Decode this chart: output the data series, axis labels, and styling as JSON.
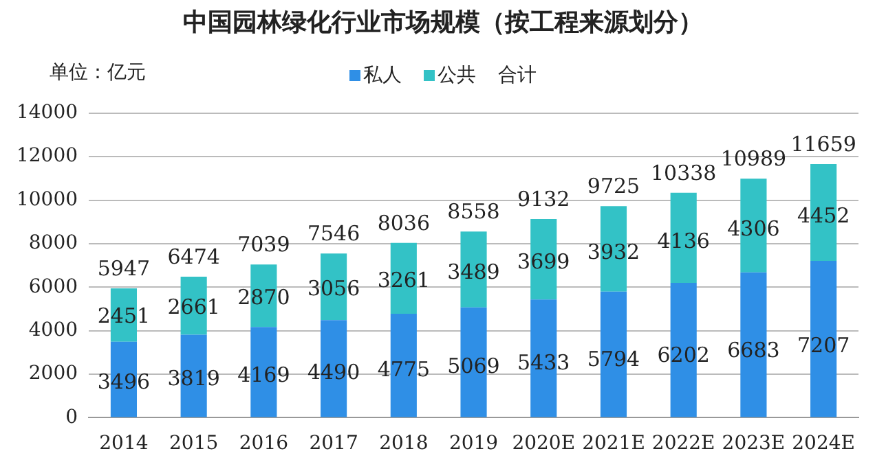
{
  "chart_data": {
    "type": "bar",
    "title": "中国园林绿化行业市场规模（按工程来源划分）",
    "ylabel": "单位：亿元",
    "categories": [
      "2014",
      "2015",
      "2016",
      "2017",
      "2018",
      "2019",
      "2020E",
      "2021E",
      "2022E",
      "2023E",
      "2024E"
    ],
    "series": [
      {
        "name": "私人",
        "color": "#2f8fe6",
        "values": [
          3496,
          3819,
          4169,
          4490,
          4775,
          5069,
          5433,
          5794,
          6202,
          6683,
          7207
        ]
      },
      {
        "name": "公共",
        "color": "#33c2c6",
        "values": [
          2451,
          2661,
          2870,
          3056,
          3261,
          3489,
          3699,
          3932,
          4136,
          4306,
          4452
        ]
      }
    ],
    "annotations": [
      "合计",
      {
        "text": "5947",
        "x": "2014",
        "y": 5947
      },
      {
        "text": "6474",
        "x": "2015",
        "y": 6474
      },
      {
        "text": "7039",
        "x": "2016",
        "y": 7039
      },
      {
        "text": "7546",
        "x": "2017",
        "y": 7546
      },
      {
        "text": "8036",
        "x": "2018",
        "y": 8036
      },
      {
        "text": "8558",
        "x": "2019",
        "y": 8558
      },
      {
        "text": "9132",
        "x": "2020E",
        "y": 9132
      },
      {
        "text": "9725",
        "x": "2021E",
        "y": 9725
      },
      {
        "text": "10338",
        "x": "2022E",
        "y": 10338
      },
      {
        "text": "10989",
        "x": "2023E",
        "y": 10989
      },
      {
        "text": "11659",
        "x": "2024E",
        "y": 11659
      }
    ],
    "stacked": true,
    "ylim": [
      0,
      14000
    ],
    "yticks": [
      0,
      2000,
      4000,
      6000,
      8000,
      10000,
      12000,
      14000
    ],
    "grid": "y",
    "legend": "top",
    "data_labels": true
  }
}
